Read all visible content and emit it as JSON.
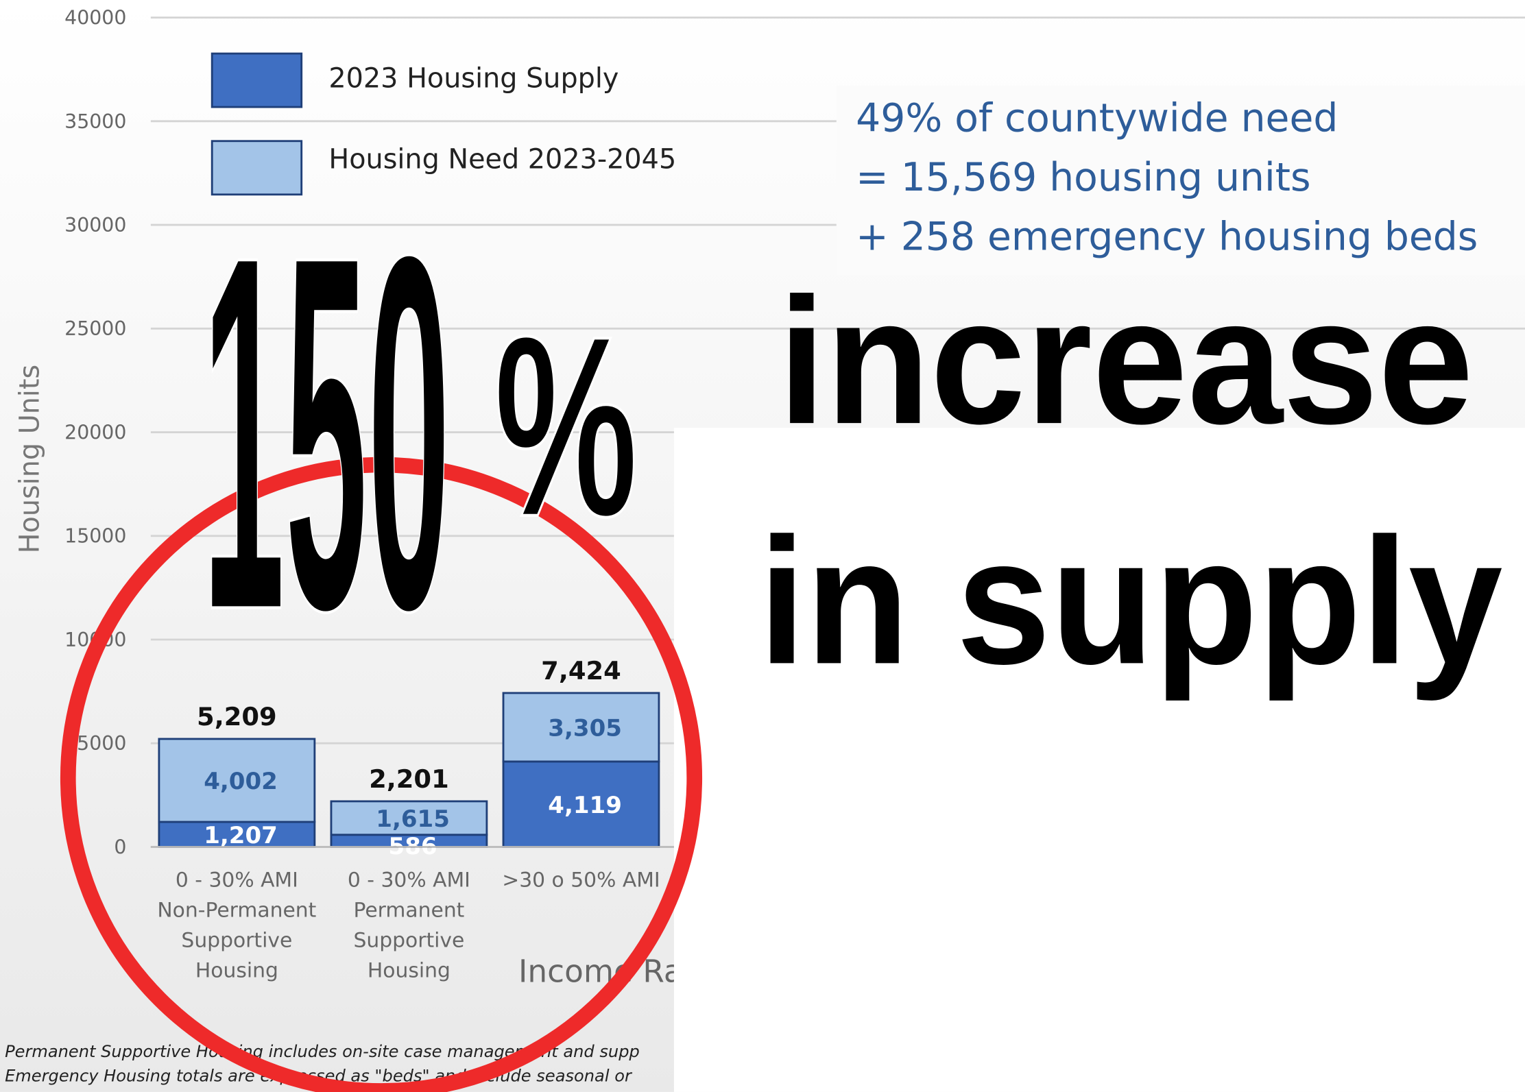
{
  "chart_data": {
    "type": "stacked_bar",
    "categories": [
      [
        "0 - 30% AMI",
        "Non-Permanent",
        "Supportive",
        "Housing"
      ],
      [
        "0 - 30% AMI",
        "Permanent",
        "Supportive",
        "Housing"
      ],
      [
        ">30 o 50% AMI"
      ]
    ],
    "series": [
      {
        "name": "2023 Housing Supply",
        "color": "#3f6fc2",
        "values": [
          1207,
          586,
          4119
        ],
        "value_labels": [
          "1,207",
          "586",
          "4,119"
        ]
      },
      {
        "name": "Housing Need 2023-2045",
        "color": "#a3c4e8",
        "values": [
          4002,
          1615,
          3305
        ],
        "value_labels": [
          "4,002",
          "1,615",
          "3,305"
        ]
      }
    ],
    "totals": [
      5209,
      2201,
      7424
    ],
    "total_labels": [
      "5,209",
      "2,201",
      "7,424"
    ],
    "ylabel": "Housing Units",
    "xlabel": "Income Ra",
    "ylim": [
      0,
      40000
    ],
    "yticks": [
      0,
      5000,
      10000,
      15000,
      20000,
      25000,
      30000,
      35000,
      40000
    ],
    "grid": true,
    "annotation": [
      "49% of countywide need",
      "= 15,569 housing units",
      "+ 258 emergency housing beds"
    ],
    "footnote": [
      "Permanent Supportive Housing includes on-site case management and supp",
      "Emergency Housing totals are expressed as \"beds\" and include seasonal or"
    ],
    "overlay": {
      "number": "150",
      "percent": "%",
      "line1": "increase",
      "line2": "in supply"
    }
  }
}
